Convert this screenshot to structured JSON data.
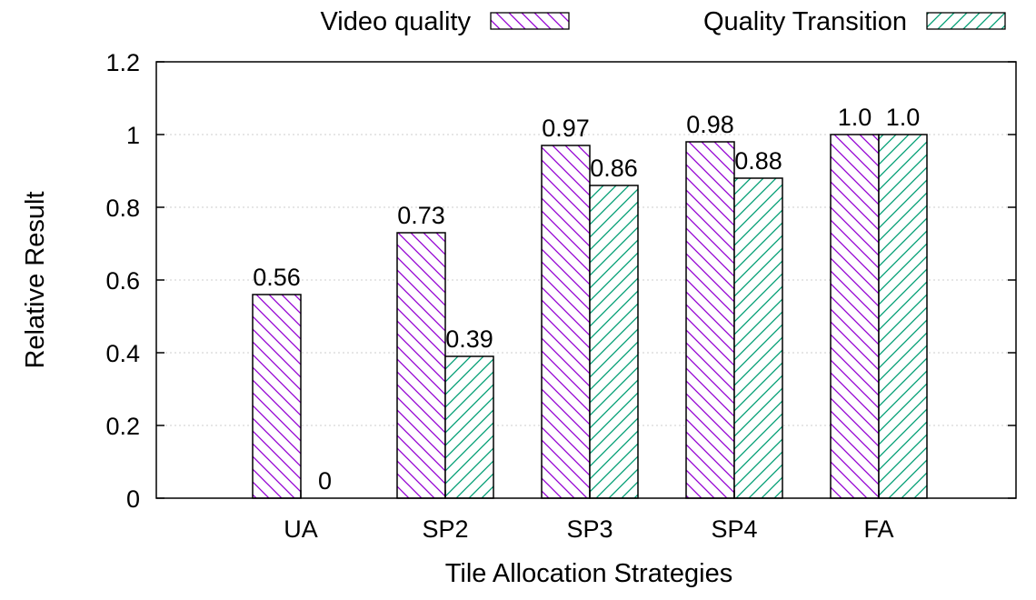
{
  "chart_data": {
    "type": "bar",
    "categories": [
      "UA",
      "SP2",
      "SP3",
      "SP4",
      "FA"
    ],
    "series": [
      {
        "name": "Video quality",
        "values": [
          0.56,
          0.73,
          0.97,
          0.98,
          1.0
        ],
        "labels": [
          "0.56",
          "0.73",
          "0.97",
          "0.98",
          "1.0"
        ],
        "color": "#9400d3",
        "pattern": "backslash-hatch"
      },
      {
        "name": "Quality Transition",
        "values": [
          0,
          0.39,
          0.86,
          0.88,
          1.0
        ],
        "labels": [
          "0",
          "0.39",
          "0.86",
          "0.88",
          "1.0"
        ],
        "color": "#009e73",
        "pattern": "slash-hatch"
      }
    ],
    "xlabel": "Tile Allocation Strategies",
    "ylabel": "Relative Result",
    "ylim": [
      0,
      1.2
    ],
    "yticks": [
      0,
      0.2,
      0.4,
      0.6,
      0.8,
      1,
      1.2
    ],
    "ytick_labels": [
      "0",
      "0.2",
      "0.4",
      "0.6",
      "0.8",
      "1",
      "1.2"
    ],
    "grid": true,
    "legend_position": "top"
  }
}
